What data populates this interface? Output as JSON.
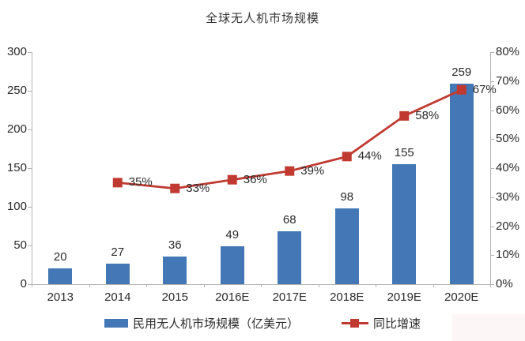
{
  "chart_data": {
    "type": "bar+line",
    "title": "全球无人机市场规模",
    "categories": [
      "2013",
      "2014",
      "2015",
      "2016E",
      "2017E",
      "2018E",
      "2019E",
      "2020E"
    ],
    "series": [
      {
        "name": "民用无人机市场规模（亿美元）",
        "type": "bar",
        "axis": "left",
        "color": "#4377b5",
        "values": [
          20,
          27,
          36,
          49,
          68,
          98,
          155,
          259
        ],
        "labels": [
          "20",
          "27",
          "36",
          "49",
          "68",
          "98",
          "155",
          "259"
        ]
      },
      {
        "name": "同比增速",
        "type": "line",
        "axis": "right",
        "color": "#c03a31",
        "values": [
          null,
          35,
          33,
          36,
          39,
          44,
          58,
          67
        ],
        "labels": [
          "",
          "35%",
          "33%",
          "36%",
          "39%",
          "44%",
          "58%",
          "67%"
        ]
      }
    ],
    "left_axis": {
      "min": 0,
      "max": 300,
      "step": 50,
      "ticks": [
        "0",
        "50",
        "100",
        "150",
        "200",
        "250",
        "300"
      ]
    },
    "right_axis": {
      "min": 0,
      "max": 80,
      "step": 10,
      "ticks": [
        "0%",
        "10%",
        "20%",
        "30%",
        "40%",
        "50%",
        "60%",
        "70%",
        "80%"
      ]
    },
    "grid": false,
    "legend_position": "bottom"
  }
}
